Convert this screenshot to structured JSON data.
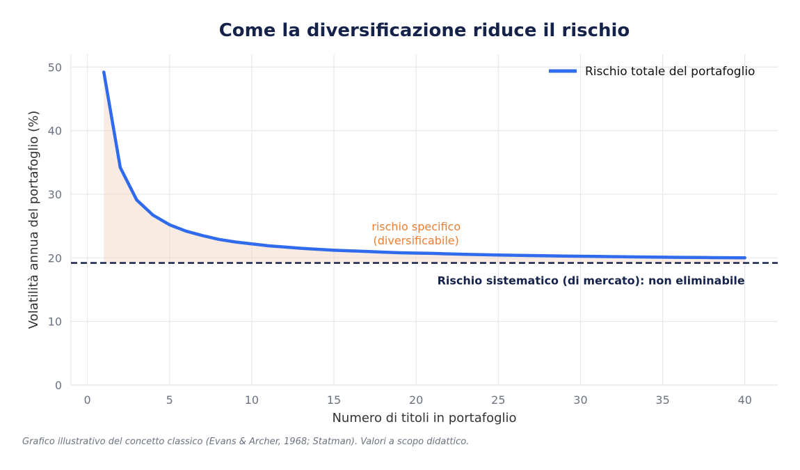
{
  "chart_data": {
    "type": "line",
    "title": "Come la diversificazione riduce il rischio",
    "xlabel": "Numero di titoli in portafoglio",
    "ylabel": "Volatilità annua del portafoglio (%)",
    "xlim": [
      -1,
      42
    ],
    "ylim": [
      0,
      52
    ],
    "xticks": [
      0,
      5,
      10,
      15,
      20,
      25,
      30,
      35,
      40
    ],
    "yticks": [
      0,
      10,
      20,
      30,
      40,
      50
    ],
    "grid": true,
    "legend_position": "top-right",
    "series": [
      {
        "name": "Rischio totale del portafoglio",
        "color": "#2f6bec",
        "x": [
          1,
          2,
          3,
          4,
          5,
          6,
          7,
          8,
          9,
          10,
          11,
          12,
          13,
          14,
          15,
          16,
          17,
          18,
          19,
          20,
          21,
          22,
          23,
          24,
          25,
          26,
          27,
          28,
          29,
          30,
          31,
          32,
          33,
          34,
          35,
          36,
          37,
          38,
          39,
          40
        ],
        "y": [
          49.2,
          34.2,
          29.1,
          26.7,
          25.2,
          24.2,
          23.5,
          22.9,
          22.5,
          22.2,
          21.9,
          21.7,
          21.5,
          21.35,
          21.2,
          21.1,
          21.0,
          20.9,
          20.8,
          20.75,
          20.7,
          20.62,
          20.56,
          20.5,
          20.45,
          20.4,
          20.36,
          20.32,
          20.28,
          20.25,
          20.22,
          20.19,
          20.16,
          20.13,
          20.1,
          20.08,
          20.06,
          20.04,
          20.02,
          20.0
        ]
      }
    ],
    "reference_line": {
      "y": 19.2,
      "color": "#15224a",
      "label": "Rischio sistematico (di mercato): non eliminabile"
    },
    "fill_color": "#f4d3bf",
    "annotation": {
      "x": 20,
      "y": 23.2,
      "color": "#ea7f33",
      "lines": [
        "rischio specifico",
        "(diversificabile)"
      ]
    },
    "colors": {
      "title": "#15224a",
      "axis_text": "#6b7280",
      "label_text": "#333333",
      "grid": "#e5e7eb"
    }
  },
  "caption": "Grafico illustrativo del concetto classico (Evans & Archer, 1968; Statman). Valori a scopo didattico."
}
